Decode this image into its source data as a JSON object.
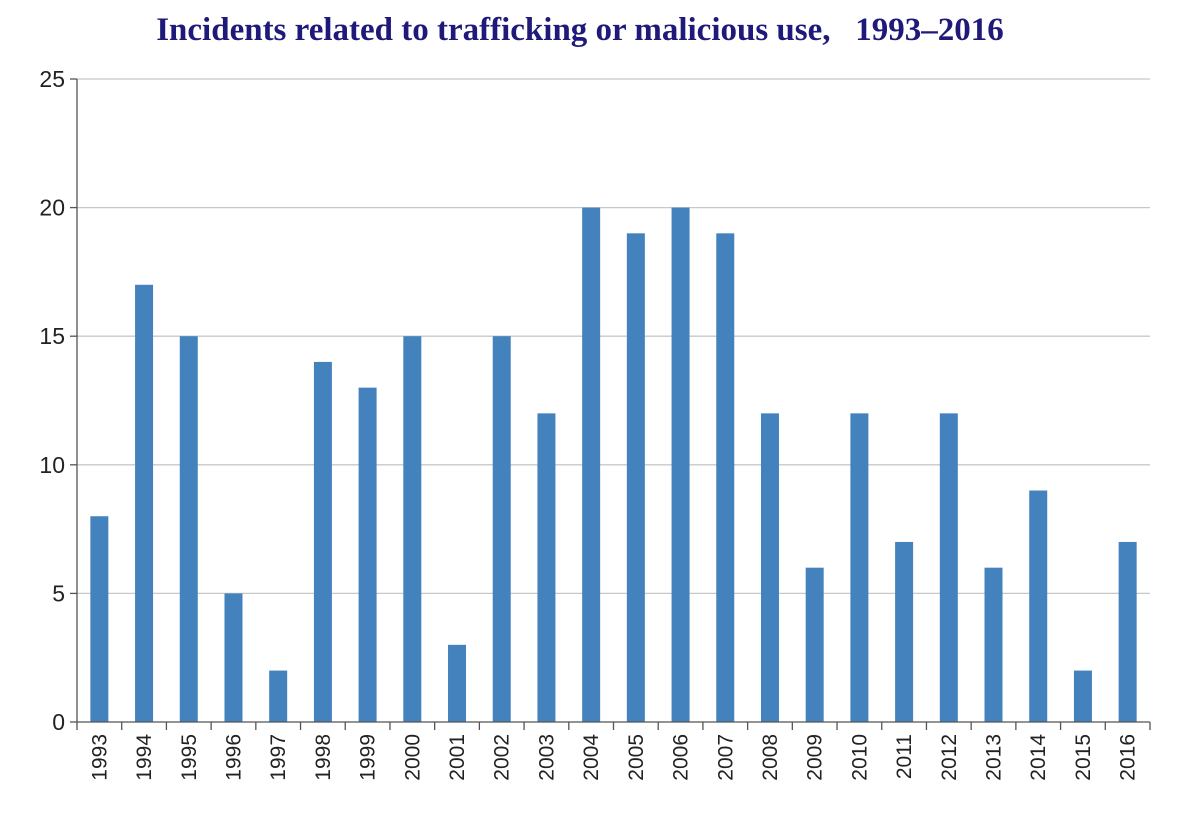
{
  "chart_data": {
    "type": "bar",
    "title": "Incidents related to trafficking or malicious use,   1993–2016",
    "categories": [
      "1993",
      "1994",
      "1995",
      "1996",
      "1997",
      "1998",
      "1999",
      "2000",
      "2001",
      "2002",
      "2003",
      "2004",
      "2005",
      "2006",
      "2007",
      "2008",
      "2009",
      "2010",
      "2011",
      "2012",
      "2013",
      "2014",
      "2015",
      "2016"
    ],
    "values": [
      8,
      17,
      15,
      5,
      2,
      14,
      13,
      15,
      3,
      15,
      12,
      20,
      19,
      20,
      19,
      12,
      6,
      12,
      7,
      12,
      6,
      9,
      2,
      7
    ],
    "ylim": [
      0,
      25
    ],
    "yticks": [
      0,
      5,
      10,
      15,
      20,
      25
    ],
    "grid": true,
    "bar_color": "#4382bd",
    "grid_color": "#c8c8c8",
    "title_color": "#1f1a7a"
  }
}
